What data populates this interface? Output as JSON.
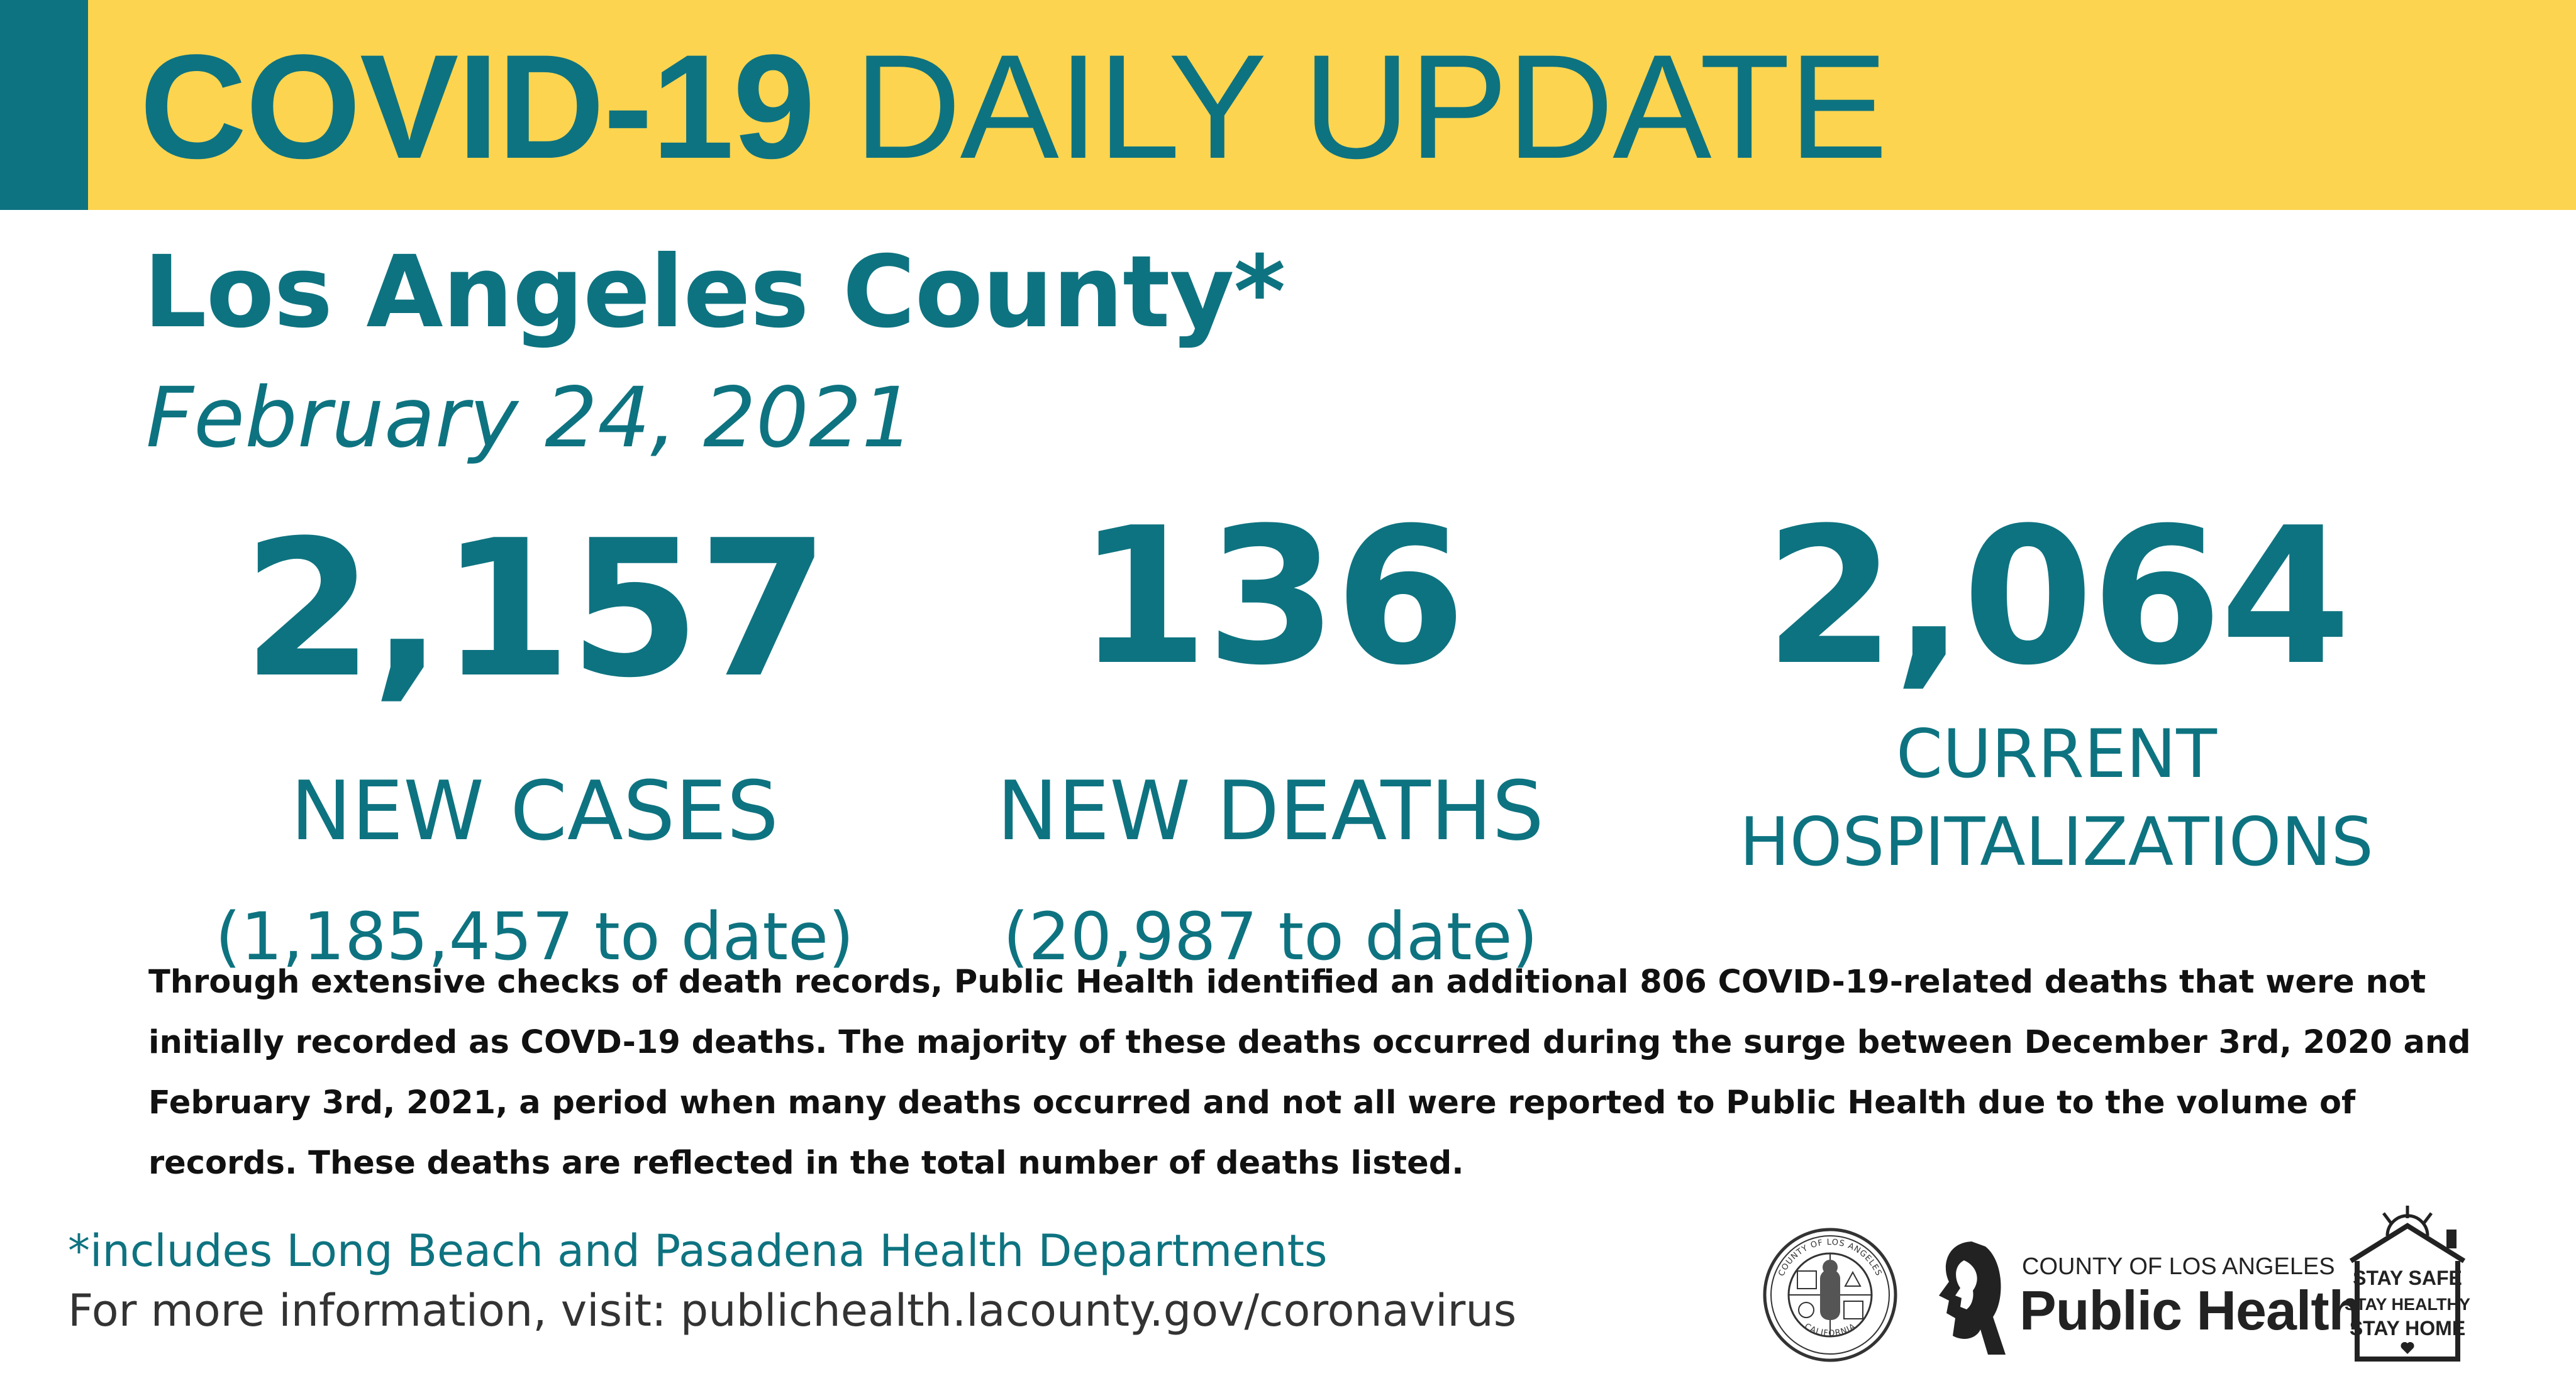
{
  "banner": {
    "title_bold": "COVID-19",
    "title_rest": " DAILY UPDATE"
  },
  "heading": {
    "county": "Los Angeles County*",
    "date": "February 24, 2021"
  },
  "stats": {
    "cases": {
      "number": "2,157",
      "label": "NEW CASES",
      "to_date": "(1,185,457 to date)"
    },
    "deaths": {
      "number": "136",
      "label": "NEW DEATHS",
      "to_date": "(20,987 to date)"
    },
    "hospitalizations": {
      "number": "2,064",
      "label_line1": "CURRENT",
      "label_line2": "HOSPITALIZATIONS"
    }
  },
  "notice": "Through extensive checks of death records, Public Health identified an additional 806 COVID-19-related deaths that were not initially recorded as COVD-19 deaths. The majority of these deaths occurred during the surge between December 3rd, 2020 and February 3rd, 2021, a period when many deaths occurred and not all were reported to Public Health due to the volume of records. These deaths are reflected in the total number of deaths listed.",
  "footer": {
    "footnote": "*includes Long Beach and Pasadena Health Departments",
    "more_info": "For more information, visit: publichealth.lacounty.gov/coronavirus"
  },
  "logos": {
    "seal_text_top": "COUNTY OF LOS ANGELES",
    "seal_text_bottom": "CALIFORNIA",
    "public_health_small": "COUNTY OF LOS ANGELES",
    "public_health_big": "Public Health",
    "stay_safe": "STAY SAFE",
    "stay_healthy": "STAY HEALTHY",
    "stay_home": "STAY HOME"
  },
  "colors": {
    "teal": "#0e7380",
    "yellow": "#fdd44f",
    "body_text": "#111111"
  }
}
